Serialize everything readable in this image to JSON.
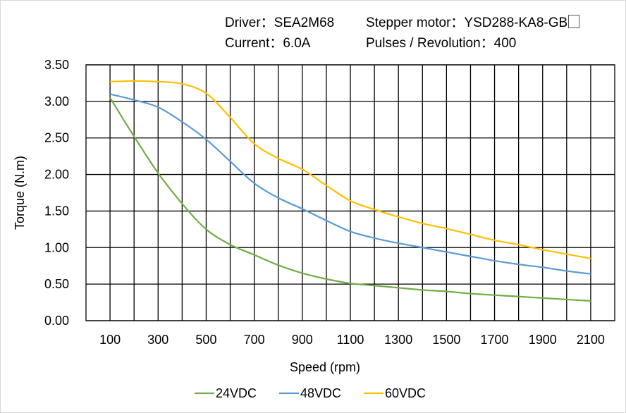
{
  "header": {
    "driver": "Driver：SEA2M68",
    "motor": "Stepper  motor：YSD288-KA8-GB",
    "current": "Current：6.0A",
    "pulses": "Pulses / Revolution：400"
  },
  "chart_data": {
    "type": "line",
    "title": "",
    "xlabel": "Speed  (rpm)",
    "ylabel": "Torque (N.m)",
    "xlim": [
      0,
      2200
    ],
    "ylim": [
      0,
      3.5
    ],
    "grid": true,
    "legend_position": "bottom",
    "x_ticks": [
      100,
      300,
      500,
      700,
      900,
      1100,
      1300,
      1500,
      1700,
      1900,
      2100
    ],
    "y_ticks": [
      "0.00",
      "0.50",
      "1.00",
      "1.50",
      "2.00",
      "2.50",
      "3.00",
      "3.50"
    ],
    "x": [
      100,
      200,
      300,
      400,
      500,
      600,
      700,
      800,
      900,
      1000,
      1100,
      1200,
      1300,
      1400,
      1500,
      1600,
      1700,
      1800,
      1900,
      2000,
      2100
    ],
    "series": [
      {
        "name": "24VDC",
        "color": "#70ad47",
        "values": [
          3.05,
          2.52,
          2.02,
          1.6,
          1.25,
          1.04,
          0.9,
          0.76,
          0.65,
          0.57,
          0.51,
          0.48,
          0.45,
          0.42,
          0.4,
          0.37,
          0.35,
          0.33,
          0.31,
          0.29,
          0.27
        ]
      },
      {
        "name": "48VDC",
        "color": "#5b9bd5",
        "values": [
          3.1,
          3.02,
          2.92,
          2.72,
          2.48,
          2.18,
          1.88,
          1.68,
          1.53,
          1.37,
          1.22,
          1.13,
          1.06,
          1.0,
          0.94,
          0.88,
          0.82,
          0.77,
          0.73,
          0.68,
          0.64
        ]
      },
      {
        "name": "60VDC",
        "color": "#ffc000",
        "values": [
          3.27,
          3.28,
          3.27,
          3.24,
          3.11,
          2.78,
          2.42,
          2.22,
          2.07,
          1.85,
          1.64,
          1.52,
          1.42,
          1.33,
          1.26,
          1.18,
          1.1,
          1.04,
          0.97,
          0.91,
          0.85
        ]
      }
    ]
  }
}
